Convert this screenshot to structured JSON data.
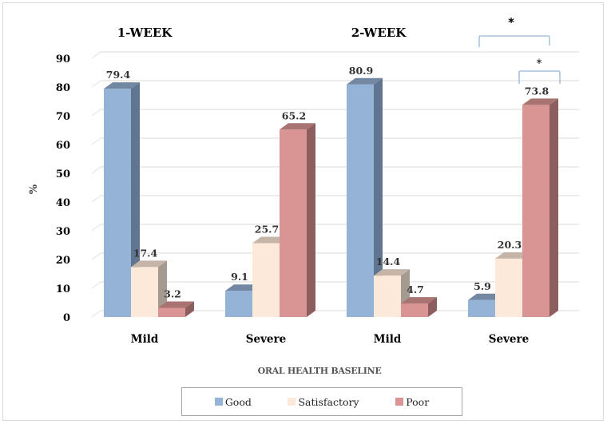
{
  "chart_data": {
    "type": "bar",
    "style": "3d-clustered-column",
    "panels": [
      {
        "title": "1-WEEK",
        "categories": [
          "Mild",
          "Severe"
        ],
        "series": [
          {
            "name": "Good",
            "values": [
              79.4,
              9.1
            ]
          },
          {
            "name": "Satisfactory",
            "values": [
              17.4,
              25.7
            ]
          },
          {
            "name": "Poor",
            "values": [
              3.2,
              65.2
            ]
          }
        ]
      },
      {
        "title": "2-WEEK",
        "categories": [
          "Mild",
          "Severe"
        ],
        "series": [
          {
            "name": "Good",
            "values": [
              80.9,
              5.9
            ]
          },
          {
            "name": "Satisfactory",
            "values": [
              14.4,
              20.3
            ]
          },
          {
            "name": "Poor",
            "values": [
              4.7,
              73.8
            ]
          }
        ]
      }
    ],
    "xlabel": "ORAL HEALTH BASELINE",
    "ylabel": "%",
    "ylim": [
      0,
      90
    ],
    "yticks": [
      0,
      10,
      20,
      30,
      40,
      50,
      60,
      70,
      80,
      90
    ],
    "grid": true,
    "legend": {
      "placement": "bottom",
      "entries": [
        "Good",
        "Satisfactory",
        "Poor"
      ]
    },
    "annotations": [
      {
        "type": "significance-bracket",
        "label": "*",
        "panel": "2-WEEK",
        "category": "Severe",
        "from_series": "Good",
        "to_series": "Poor"
      },
      {
        "type": "significance-bracket",
        "label": "*",
        "panel": "2-WEEK",
        "category": "Severe",
        "from_series": "Satisfactory",
        "to_series": "Poor"
      }
    ]
  },
  "colors": {
    "Good": {
      "front": "#95b3d7",
      "side": "#5f7590",
      "top": "#7287a1"
    },
    "Satisfactory": {
      "front": "#fde9d9",
      "side": "#a59a90",
      "top": "#c4b5a8"
    },
    "Poor": {
      "front": "#d99594",
      "side": "#8c5e5d",
      "top": "#a97372"
    },
    "bracket": "#95b3d7",
    "grid": "#ececec",
    "label": "#333333",
    "axis_text": "#000000"
  }
}
